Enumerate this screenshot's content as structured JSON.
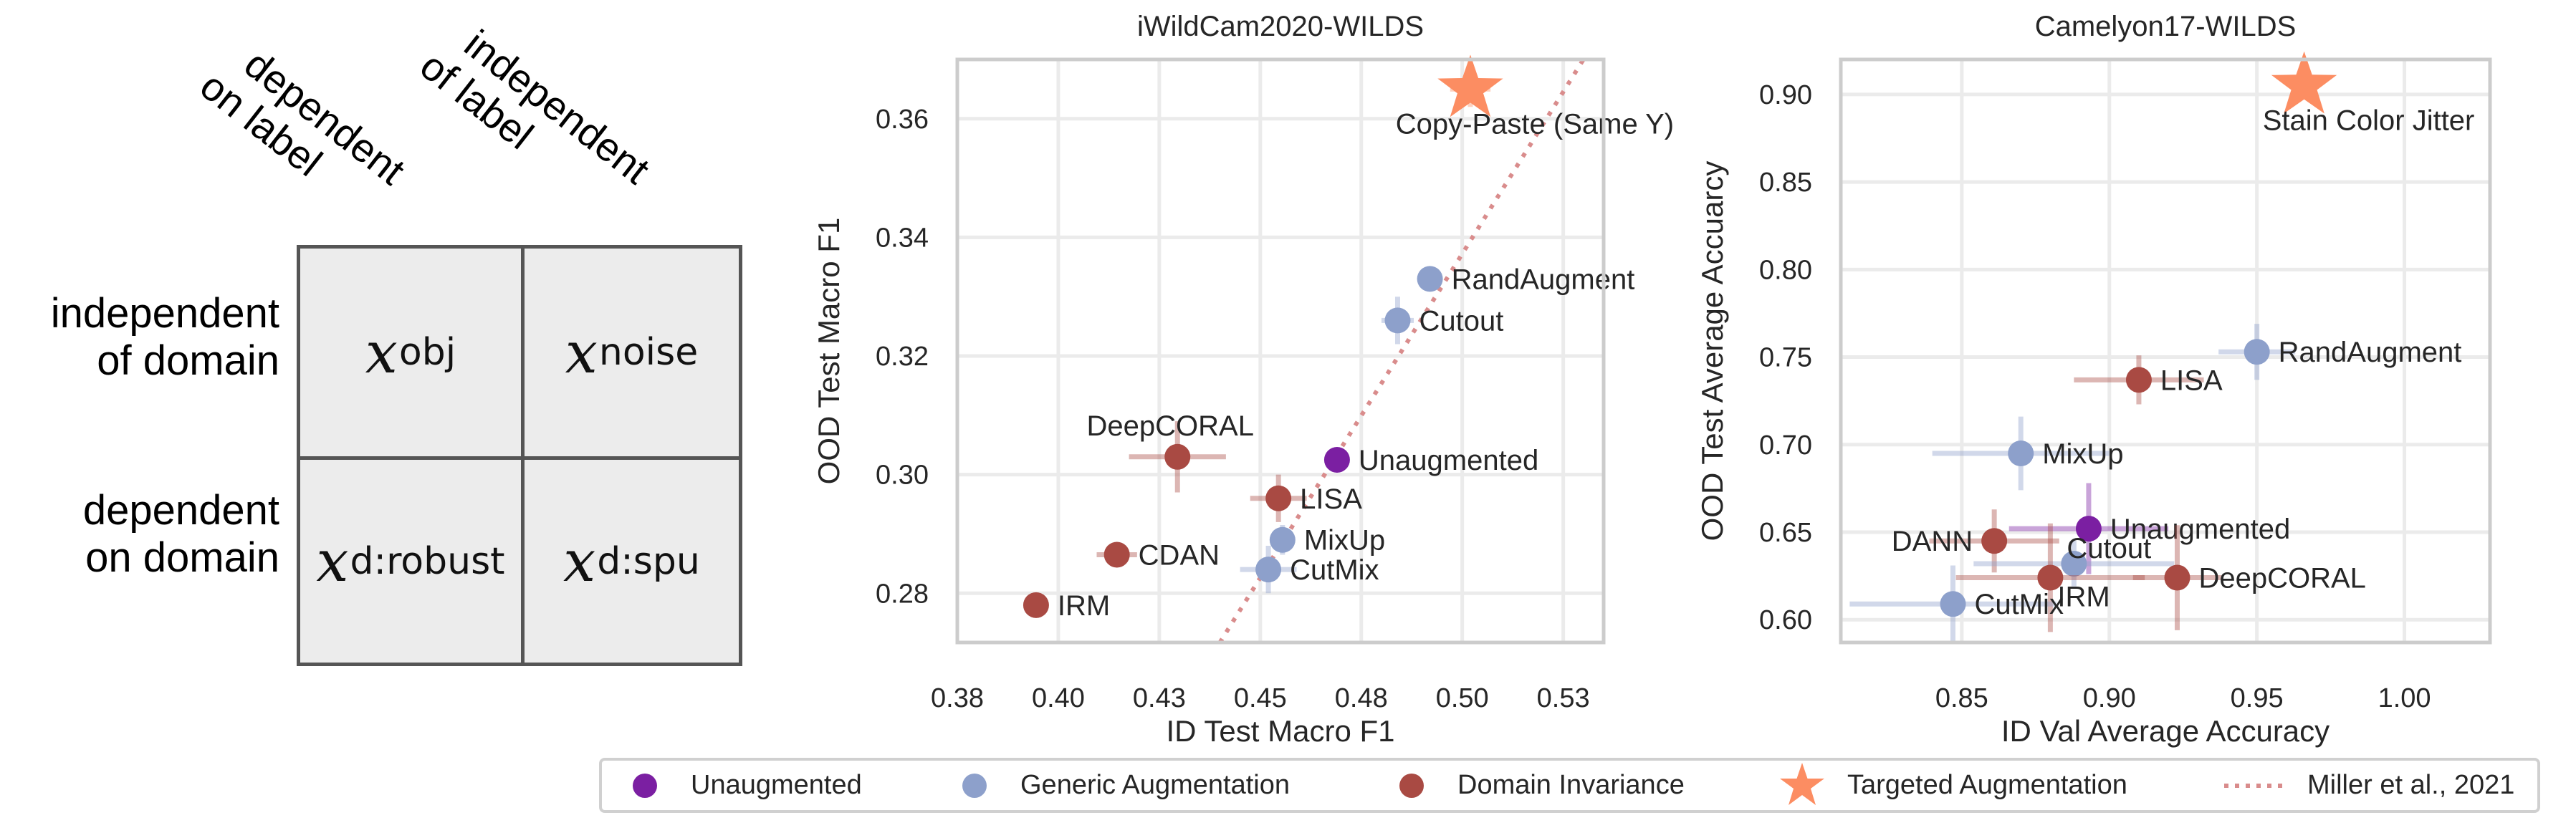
{
  "diagram": {
    "col_headers": [
      "dependent\non label",
      "independent\nof label"
    ],
    "col_header_lines": [
      [
        "dependent",
        "on label"
      ],
      [
        "independent",
        "of label"
      ]
    ],
    "row_headers": [
      [
        "independent",
        "of domain"
      ],
      [
        "dependent",
        "on domain"
      ]
    ],
    "cells": [
      {
        "var": "x",
        "sub": "obj"
      },
      {
        "var": "x",
        "sub": "noise"
      },
      {
        "var": "x",
        "sub": "d:robust"
      },
      {
        "var": "x",
        "sub": "d:spu"
      }
    ]
  },
  "colors": {
    "unaugmented": "#7b1fa2",
    "generic": "#8da0cb",
    "domain_invariance": "#a94a43",
    "targeted": "#fc8d62",
    "miller": "#d98c8c",
    "grid": "#ebebeb",
    "frame": "#cccccc"
  },
  "legend": [
    {
      "label": "Unaugmented",
      "group": "unaugmented",
      "marker": "circle"
    },
    {
      "label": "Generic Augmentation",
      "group": "generic",
      "marker": "circle"
    },
    {
      "label": "Domain Invariance",
      "group": "domain_invariance",
      "marker": "circle"
    },
    {
      "label": "Targeted Augmentation",
      "group": "targeted",
      "marker": "star"
    },
    {
      "label": "Miller et al., 2021",
      "group": "miller",
      "marker": "dotted-line"
    }
  ],
  "chart_data": [
    {
      "type": "scatter",
      "title": "iWildCam2020-WILDS",
      "xlabel": "ID Test Macro F1",
      "ylabel": "OOD Test Macro F1",
      "xlim": [
        0.375,
        0.535
      ],
      "ylim": [
        0.2717,
        0.37
      ],
      "xticks": [
        0.375,
        0.4,
        0.425,
        0.45,
        0.475,
        0.5,
        0.525
      ],
      "xtick_labels": [
        "0.38",
        "0.40",
        "0.43",
        "0.45",
        "0.48",
        "0.50",
        "0.53"
      ],
      "yticks": [
        0.28,
        0.3,
        0.32,
        0.34,
        0.36
      ],
      "ytick_labels": [
        "0.28",
        "0.30",
        "0.32",
        "0.34",
        "0.36"
      ],
      "grid": true,
      "miller_line": {
        "x": [
          0.44,
          0.53
        ],
        "y": [
          0.2717,
          0.37
        ]
      },
      "points": [
        {
          "label": "Copy-Paste (Same Y)",
          "group": "targeted",
          "x": 0.502,
          "y": 0.365,
          "xerr": 0.005,
          "yerr": 0.003,
          "label_pos": "below"
        },
        {
          "label": "RandAugment",
          "group": "generic",
          "x": 0.492,
          "y": 0.333,
          "xerr": 0.0,
          "yerr": 0.0,
          "label_pos": "right"
        },
        {
          "label": "Cutout",
          "group": "generic",
          "x": 0.484,
          "y": 0.326,
          "xerr": 0.004,
          "yerr": 0.004,
          "label_pos": "right"
        },
        {
          "label": "Unaugmented",
          "group": "unaugmented",
          "x": 0.469,
          "y": 0.3025,
          "xerr": 0.002,
          "yerr": 0.002,
          "label_pos": "right"
        },
        {
          "label": "DeepCORAL",
          "group": "domain_invariance",
          "x": 0.4295,
          "y": 0.303,
          "xerr": 0.012,
          "yerr": 0.006,
          "label_pos": "above"
        },
        {
          "label": "LISA",
          "group": "domain_invariance",
          "x": 0.4545,
          "y": 0.296,
          "xerr": 0.007,
          "yerr": 0.004,
          "label_pos": "right"
        },
        {
          "label": "MixUp",
          "group": "generic",
          "x": 0.4555,
          "y": 0.289,
          "xerr": 0.003,
          "yerr": 0.0025,
          "label_pos": "right"
        },
        {
          "label": "CutMix",
          "group": "generic",
          "x": 0.452,
          "y": 0.284,
          "xerr": 0.007,
          "yerr": 0.004,
          "label_pos": "right"
        },
        {
          "label": "CDAN",
          "group": "domain_invariance",
          "x": 0.4145,
          "y": 0.2865,
          "xerr": 0.005,
          "yerr": 0.002,
          "label_pos": "right"
        },
        {
          "label": "IRM",
          "group": "domain_invariance",
          "x": 0.3945,
          "y": 0.278,
          "xerr": 0.003,
          "yerr": 0.0,
          "label_pos": "right"
        }
      ]
    },
    {
      "type": "scatter",
      "title": "Camelyon17-WILDS",
      "xlabel": "ID Val Average Accuracy",
      "ylabel": "OOD Test Average Accuarcy",
      "xlim": [
        0.809,
        1.029
      ],
      "ylim": [
        0.587,
        0.92
      ],
      "xticks": [
        0.85,
        0.9,
        0.95,
        1.0
      ],
      "xtick_labels": [
        "0.85",
        "0.90",
        "0.95",
        "1.00"
      ],
      "yticks": [
        0.6,
        0.65,
        0.7,
        0.75,
        0.8,
        0.85,
        0.9
      ],
      "ytick_labels": [
        "0.60",
        "0.65",
        "0.70",
        "0.75",
        "0.80",
        "0.85",
        "0.90"
      ],
      "grid": true,
      "points": [
        {
          "label": "Stain Color Jitter",
          "group": "targeted",
          "x": 0.966,
          "y": 0.905,
          "xerr": 0.0,
          "yerr": 0.0,
          "label_pos": "below"
        },
        {
          "label": "RandAugment",
          "group": "generic",
          "x": 0.95,
          "y": 0.753,
          "xerr": 0.013,
          "yerr": 0.016,
          "label_pos": "right"
        },
        {
          "label": "LISA",
          "group": "domain_invariance",
          "x": 0.91,
          "y": 0.737,
          "xerr": 0.022,
          "yerr": 0.014,
          "label_pos": "right"
        },
        {
          "label": "MixUp",
          "group": "generic",
          "x": 0.87,
          "y": 0.695,
          "xerr": 0.03,
          "yerr": 0.021,
          "label_pos": "right"
        },
        {
          "label": "Unaugmented",
          "group": "unaugmented",
          "x": 0.893,
          "y": 0.652,
          "xerr": 0.027,
          "yerr": 0.026,
          "label_pos": "right"
        },
        {
          "label": "DANN",
          "group": "domain_invariance",
          "x": 0.861,
          "y": 0.645,
          "xerr": 0.022,
          "yerr": 0.018,
          "label_pos": "left"
        },
        {
          "label": "Cutout",
          "group": "generic",
          "x": 0.888,
          "y": 0.632,
          "xerr": 0.034,
          "yerr": 0.013,
          "label_pos": "right-up"
        },
        {
          "label": "IRM",
          "group": "domain_invariance",
          "x": 0.88,
          "y": 0.624,
          "xerr": 0.032,
          "yerr": 0.031,
          "label_pos": "right-down"
        },
        {
          "label": "DeepCORAL",
          "group": "domain_invariance",
          "x": 0.923,
          "y": 0.624,
          "xerr": 0.015,
          "yerr": 0.03,
          "label_pos": "right"
        },
        {
          "label": "CutMix",
          "group": "generic",
          "x": 0.847,
          "y": 0.609,
          "xerr": 0.035,
          "yerr": 0.022,
          "label_pos": "right"
        }
      ]
    }
  ]
}
